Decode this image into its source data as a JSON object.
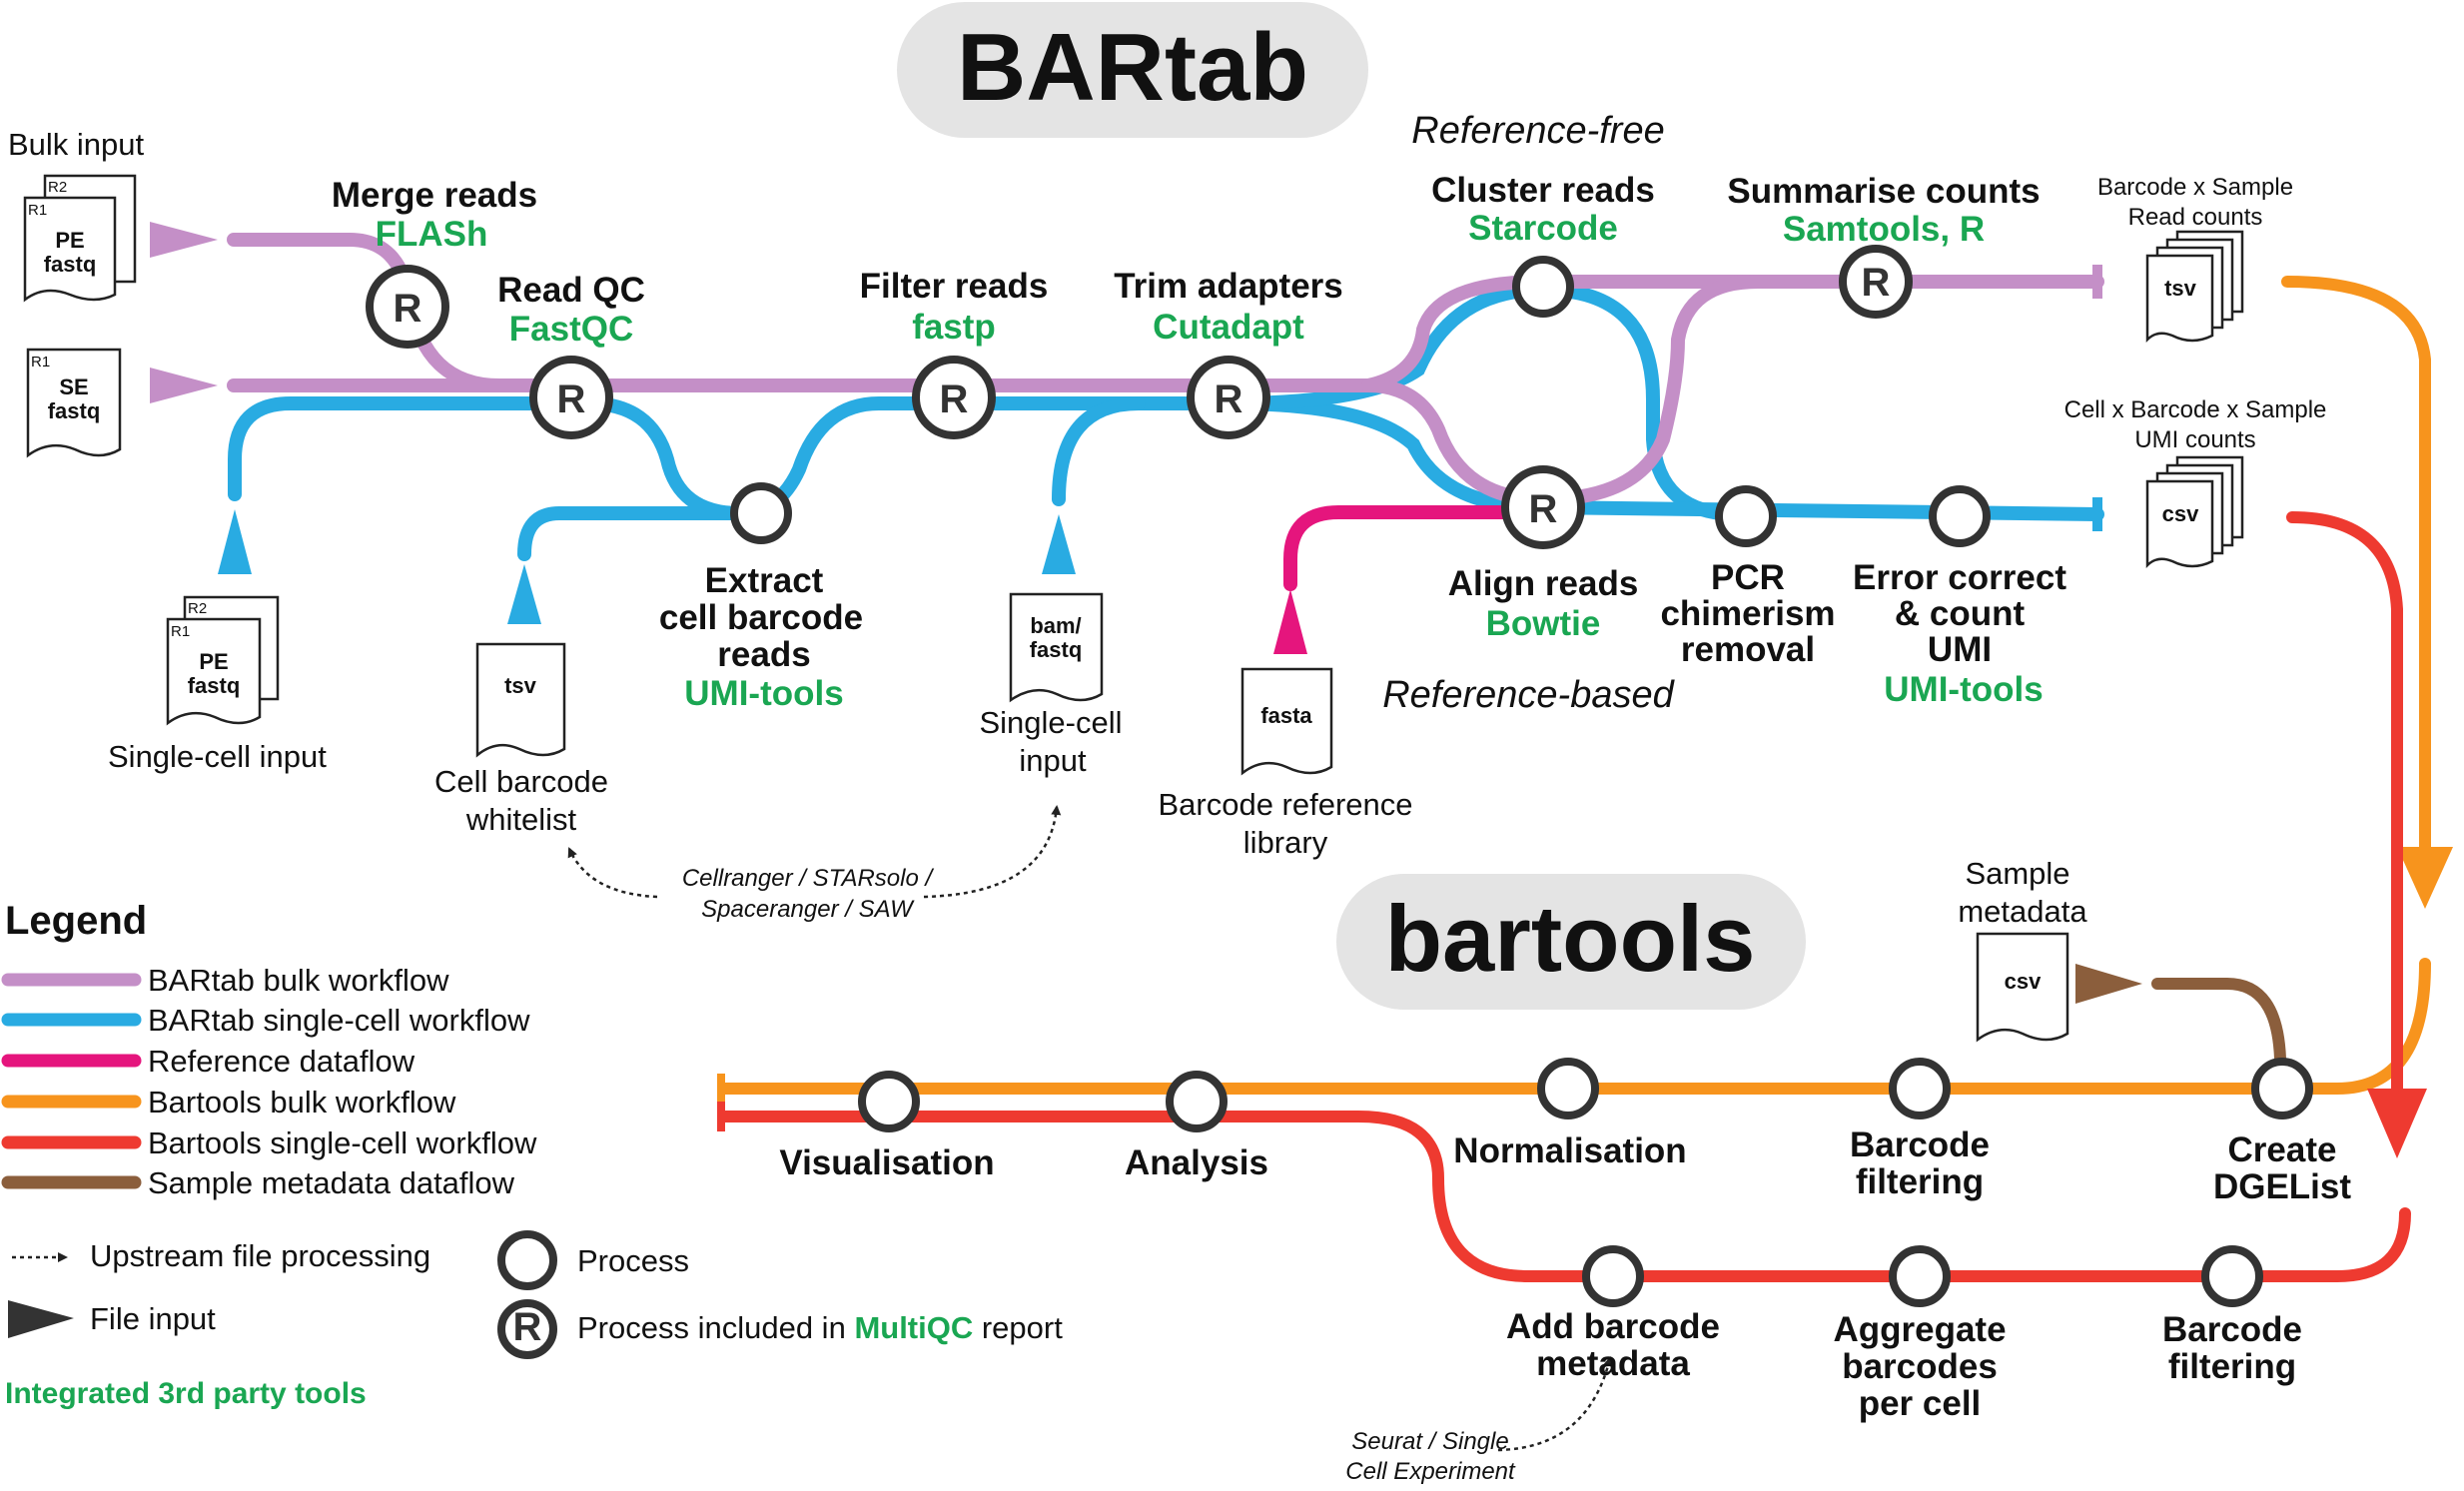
{
  "titles": {
    "bartab": "BARtab",
    "bartools": "bartools"
  },
  "colors": {
    "bulk": "#c48fc7",
    "singlecell": "#29abe2",
    "reference": "#e5157d",
    "bartools_bulk": "#f7941d",
    "bartools_sc": "#ee3a30",
    "metadata": "#8b5e3c",
    "tool_text": "#1aa652",
    "node_stroke": "#333333"
  },
  "sections": {
    "reference_free": "Reference-free",
    "reference_based": "Reference-based"
  },
  "inputs": {
    "bulk_input": "Bulk input",
    "pe_bulk": {
      "line1": "PE",
      "line2": "fastq",
      "r1": "R1",
      "r2": "R2"
    },
    "se_bulk": {
      "line1": "SE",
      "line2": "fastq",
      "r1": "R1"
    },
    "sc_input": "Single-cell input",
    "pe_sc": {
      "line1": "PE",
      "line2": "fastq",
      "r1": "R1",
      "r2": "R2"
    },
    "whitelist": {
      "doc": "tsv",
      "line1": "Cell barcode",
      "line2": "whitelist"
    },
    "bam": {
      "line1": "bam/",
      "line2": "fastq",
      "label1": "Single-cell",
      "label2": "input"
    },
    "fasta": {
      "doc": "fasta",
      "line1": "Barcode reference",
      "line2": "library"
    },
    "sample_metadata": {
      "doc": "csv",
      "line1": "Sample",
      "line2": "metadata"
    }
  },
  "outputs": {
    "counts": {
      "doc": "tsv",
      "line1": "Barcode x Sample",
      "line2": "Read counts"
    },
    "umi": {
      "doc": "csv",
      "line1": "Cell x Barcode x Sample",
      "line2": "UMI counts"
    }
  },
  "upstream": {
    "line1": "Cellranger / STARsolo /",
    "line2": "Spaceranger / SAW"
  },
  "seurat": {
    "line1": "Seurat / Single",
    "line2": "Cell Experiment"
  },
  "processes": {
    "merge": {
      "name": "Merge reads",
      "tool": "FLASh"
    },
    "readqc": {
      "name": "Read QC",
      "tool": "FastQC"
    },
    "filter": {
      "name": "Filter reads",
      "tool": "fastp"
    },
    "trim": {
      "name": "Trim adapters",
      "tool": "Cutadapt"
    },
    "extract": {
      "line1": "Extract",
      "line2": "cell barcode",
      "line3": "reads",
      "tool": "UMI-tools"
    },
    "cluster": {
      "name": "Cluster reads",
      "tool": "Starcode"
    },
    "summarise": {
      "name": "Summarise counts",
      "tool": "Samtools, R"
    },
    "align": {
      "name": "Align reads",
      "tool": "Bowtie"
    },
    "pcr": {
      "line1": "PCR",
      "line2": "chimerism",
      "line3": "removal"
    },
    "errorcorrect": {
      "line1": "Error correct",
      "line2": "& count",
      "line3": "UMI",
      "tool": "UMI-tools"
    },
    "visualisation": "Visualisation",
    "analysis": "Analysis",
    "normalisation": "Normalisation",
    "barcode_filtering": {
      "line1": "Barcode",
      "line2": "filtering"
    },
    "create_dgelist": {
      "line1": "Create",
      "line2": "DGEList"
    },
    "add_metadata": {
      "line1": "Add barcode",
      "line2": "metadata"
    },
    "aggregate": {
      "line1": "Aggregate",
      "line2": "barcodes",
      "line3": "per cell"
    },
    "sc_barcode_filtering": {
      "line1": "Barcode",
      "line2": "filtering"
    }
  },
  "node_mark": "R",
  "legend": {
    "title": "Legend",
    "items": [
      "BARtab bulk workflow",
      "BARtab single-cell workflow",
      "Reference dataflow",
      "Bartools bulk workflow",
      "Bartools single-cell workflow",
      "Sample metadata dataflow"
    ],
    "upstream": "Upstream file processing",
    "file_input": "File input",
    "process": "Process",
    "multiqc_prefix": "Process included in ",
    "multiqc_name": "MultiQC",
    "multiqc_suffix": " report",
    "integrated": "Integrated 3rd party tools"
  }
}
